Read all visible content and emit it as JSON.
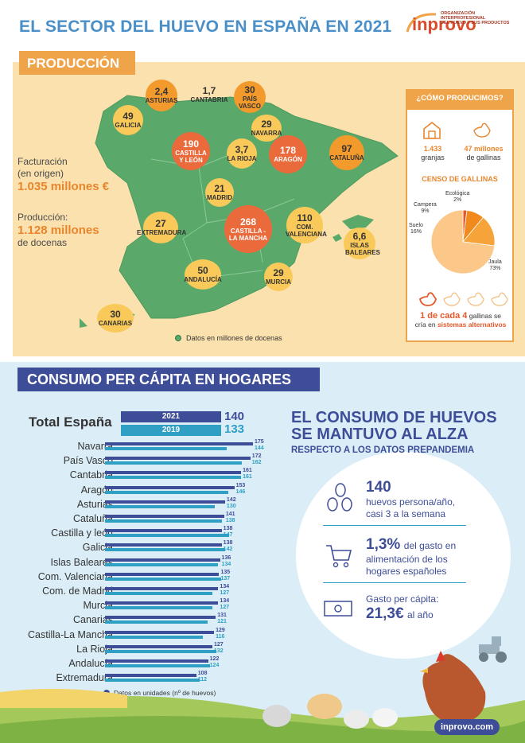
{
  "title": "EL SECTOR DEL HUEVO EN ESPAÑA EN 2021",
  "logo": {
    "word": "inprovo",
    "org_line1": "ORGANIZACIÓN INTERPROFESIONAL",
    "org_line2": "DEL HUEVO Y SUS PRODUCTOS"
  },
  "production": {
    "banner": "PRODUCCIÓN",
    "facturacion_label_1": "Facturación",
    "facturacion_label_2": "(en origen)",
    "facturacion_value": "1.035 millones €",
    "produccion_label": "Producción:",
    "produccion_value_1": "1.128 millones",
    "produccion_value_2": "de docenas",
    "legend": "Datos en millones de docenas",
    "regions": [
      {
        "name": "ASTURIAS",
        "value": "2,4"
      },
      {
        "name": "CANTABRIA",
        "value": "1,7"
      },
      {
        "name": "PAÍS VASCO",
        "value": "30"
      },
      {
        "name": "GALICIA",
        "value": "49"
      },
      {
        "name": "NAVARRA",
        "value": "29"
      },
      {
        "name": "CASTILLA Y LEÓN",
        "value": "190"
      },
      {
        "name": "LA RIOJA",
        "value": "3,7"
      },
      {
        "name": "ARAGÓN",
        "value": "178"
      },
      {
        "name": "CATALUÑA",
        "value": "97"
      },
      {
        "name": "MADRID",
        "value": "21"
      },
      {
        "name": "EXTREMADURA",
        "value": "27"
      },
      {
        "name": "CASTILLA - LA MANCHA",
        "value": "268"
      },
      {
        "name": "COM. VALENCIANA",
        "value": "110"
      },
      {
        "name": "ISLAS BALEARES",
        "value": "6,6"
      },
      {
        "name": "ANDALUCÍA",
        "value": "50"
      },
      {
        "name": "MURCIA",
        "value": "29"
      },
      {
        "name": "CANARIAS",
        "value": "30"
      }
    ]
  },
  "how": {
    "title": "¿CÓMO PRODUCIMOS?",
    "granjas_value": "1.433",
    "granjas_label": "granjas",
    "gallinas_value": "47 millones",
    "gallinas_label": "de gallinas",
    "censo_title": "CENSO DE GALLINAS",
    "segments": [
      {
        "name": "Ecológica",
        "value": "2%"
      },
      {
        "name": "Campera",
        "value": "9%"
      },
      {
        "name": "Suelo",
        "value": "16%"
      },
      {
        "name": "Jaula",
        "value": "73%"
      }
    ],
    "ratio_bold": "1 de cada 4",
    "ratio_rest": "gallinas se",
    "ratio_line2": "cría en",
    "ratio_bold2": "sistemas alternativos",
    "colors": {
      "jaula": "#fcc88a",
      "suelo": "#f6a33a",
      "campera": "#f08a1c",
      "ecologica": "#e5582a"
    }
  },
  "consumption": {
    "banner": "CONSUMO PER CÁPITA EN HOGARES",
    "total_label": "Total España",
    "year_2021": "2021",
    "year_2019": "2019",
    "total_2021": "140",
    "total_2019": "133",
    "legend": "Datos en unidades (nº de huevos)",
    "headline_1": "EL CONSUMO DE HUEVOS",
    "headline_2": "SE MANTUVO AL ALZA",
    "subheadline": "RESPECTO A LOS DATOS PREPANDEMIA",
    "fact1_big": "140",
    "fact1_line1": "huevos persona/año,",
    "fact1_line2": "casi 3 a la semana",
    "fact2_big": "1,3%",
    "fact2_rest": "del gasto en",
    "fact2_line2": "alimentación de los",
    "fact2_line3": "hogares españoles",
    "fact3_line1": "Gasto per cápita:",
    "fact3_big": "21,3€",
    "fact3_rest": "al año",
    "site": "inprovo.com"
  },
  "chart_data": {
    "type": "bar",
    "categories": [
      "Navarra",
      "País Vasco",
      "Cantabria",
      "Aragón",
      "Asturias",
      "Cataluña",
      "Castilla y león",
      "Galicia",
      "Islas Baleares",
      "Com. Valenciana",
      "Com. de Madrid",
      "Murcia",
      "Canarias",
      "Castilla-La Mancha",
      "La Rioja",
      "Andalucía",
      "Extremadura"
    ],
    "series": [
      {
        "name": "2021",
        "values": [
          175,
          172,
          161,
          153,
          142,
          141,
          138,
          138,
          136,
          135,
          134,
          134,
          131,
          129,
          127,
          122,
          108
        ]
      },
      {
        "name": "2019",
        "values": [
          144,
          162,
          161,
          146,
          130,
          138,
          147,
          142,
          134,
          137,
          127,
          127,
          121,
          116,
          132,
          124,
          112
        ]
      }
    ],
    "colors": [
      "#3d4d97",
      "#2f9fc4"
    ]
  }
}
